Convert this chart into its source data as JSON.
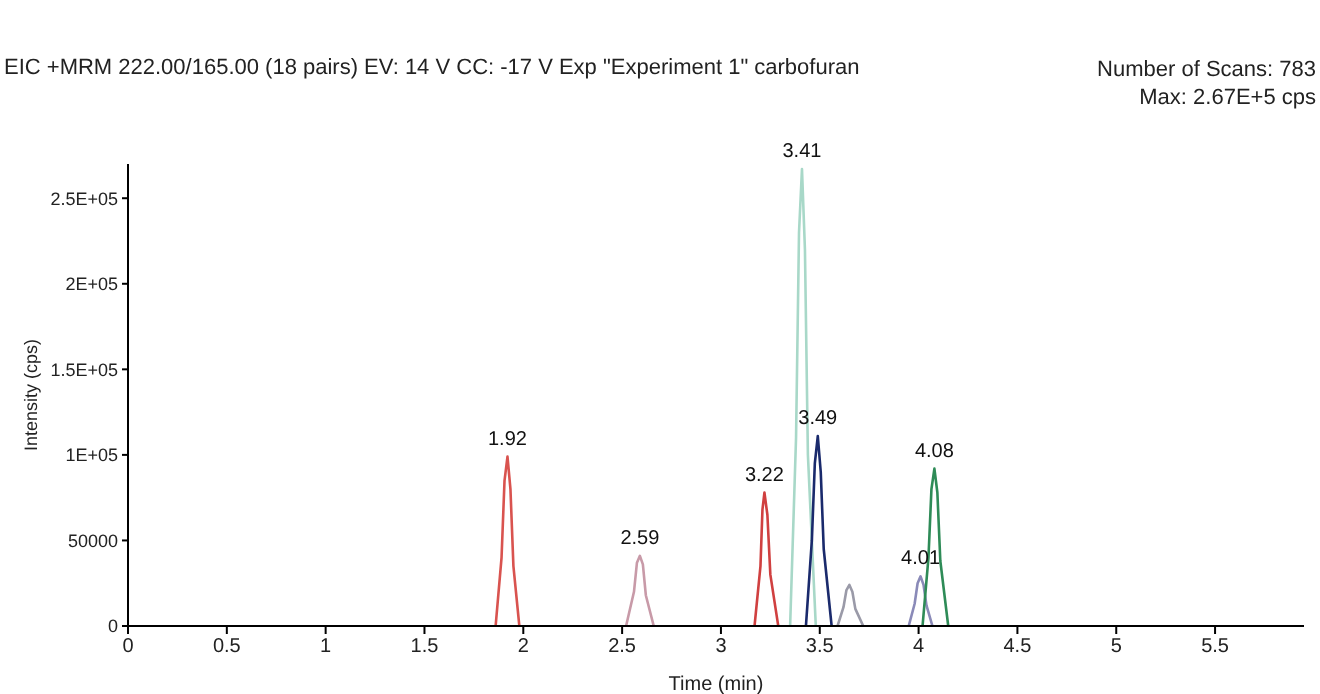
{
  "chart_data": {
    "type": "line",
    "title": "EIC +MRM 222.00/165.00 (18 pairs) EV: 14 V CC: -17 V Exp \"Experiment 1\" carbofuran",
    "xlabel": "Time (min)",
    "ylabel": "Intensity (cps)",
    "xlim": [
      0,
      5.95
    ],
    "xticks": [
      0,
      0.5,
      1,
      1.5,
      2,
      2.5,
      3,
      3.5,
      4,
      4.5,
      5,
      5.5
    ],
    "ylim": [
      0,
      270000
    ],
    "yticks": [
      0,
      50000,
      {
        "value": 100000,
        "label": "1E+05"
      },
      {
        "value": 150000,
        "label": "1.5E+05"
      },
      {
        "value": 200000,
        "label": "2E+05"
      },
      {
        "value": 250000,
        "label": "2.5E+05"
      }
    ],
    "grid": false,
    "marker": "none",
    "line_style": "solid",
    "series": [
      {
        "color": "#d9534f",
        "x": [
          1.86,
          1.89,
          1.905,
          1.92,
          1.935,
          1.95,
          1.98
        ],
        "values": [
          0,
          40000,
          85000,
          99000,
          80000,
          35000,
          0
        ]
      },
      {
        "color": "#c89aa8",
        "x": [
          2.52,
          2.56,
          2.575,
          2.59,
          2.605,
          2.62,
          2.66
        ],
        "values": [
          0,
          20000,
          37000,
          41000,
          36000,
          18000,
          0
        ]
      },
      {
        "color": "#d04040",
        "x": [
          3.17,
          3.2,
          3.21,
          3.22,
          3.235,
          3.25,
          3.29
        ],
        "values": [
          0,
          35000,
          68000,
          78000,
          65000,
          30000,
          0
        ]
      },
      {
        "color": "#a8d8c8",
        "x": [
          3.35,
          3.38,
          3.395,
          3.41,
          3.425,
          3.44,
          3.48
        ],
        "values": [
          0,
          110000,
          230000,
          267000,
          220000,
          100000,
          0
        ]
      },
      {
        "color": "#1a2a6c",
        "x": [
          3.43,
          3.46,
          3.475,
          3.49,
          3.505,
          3.52,
          3.56
        ],
        "values": [
          0,
          50000,
          95000,
          111000,
          90000,
          45000,
          0
        ]
      },
      {
        "color": "#9a9aa8",
        "x": [
          3.59,
          3.62,
          3.635,
          3.65,
          3.665,
          3.68,
          3.72
        ],
        "values": [
          0,
          11000,
          21000,
          24000,
          20000,
          10000,
          0
        ]
      },
      {
        "color": "#8a8ab8",
        "x": [
          3.95,
          3.98,
          3.995,
          4.01,
          4.025,
          4.04,
          4.07
        ],
        "values": [
          0,
          13000,
          25000,
          29000,
          24000,
          12000,
          0
        ]
      },
      {
        "color": "#2e8b57",
        "x": [
          4.02,
          4.05,
          4.065,
          4.08,
          4.095,
          4.11,
          4.15
        ],
        "values": [
          0,
          40000,
          80000,
          92000,
          78000,
          38000,
          0
        ]
      }
    ],
    "annotations": [
      {
        "text": "1.92",
        "x": 1.92,
        "y": 99000
      },
      {
        "text": "2.59",
        "x": 2.59,
        "y": 41000
      },
      {
        "text": "3.22",
        "x": 3.22,
        "y": 78000
      },
      {
        "text": "3.41",
        "x": 3.41,
        "y": 267000
      },
      {
        "text": "3.49",
        "x": 3.49,
        "y": 111000
      },
      {
        "text": "4.01",
        "x": 4.01,
        "y": 29000
      },
      {
        "text": "4.08",
        "x": 4.08,
        "y": 92000
      },
      "Number of Scans: 783",
      "Max: 2.67E+5 cps"
    ]
  }
}
